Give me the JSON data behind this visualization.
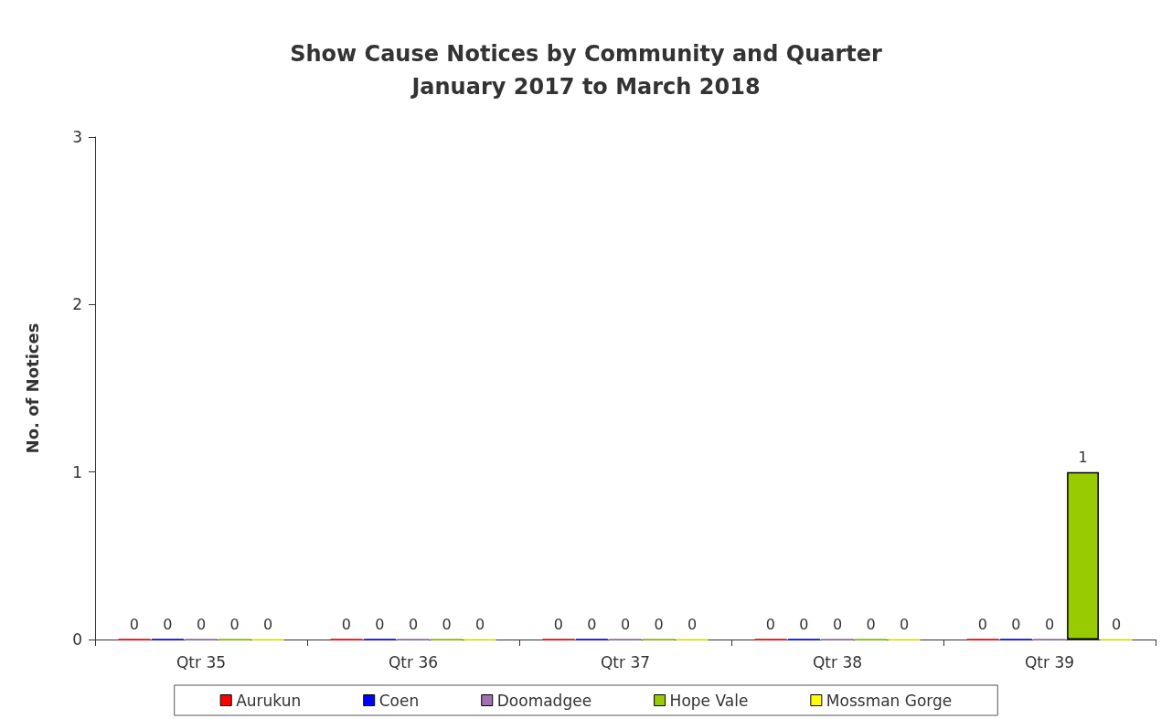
{
  "chart_data": {
    "type": "bar",
    "title": "Show Cause Notices by Community and Quarter\nJanuary 2017 to March 2018",
    "ylabel": "No. of Notices",
    "categories": [
      "Qtr 35",
      "Qtr 36",
      "Qtr 37",
      "Qtr 38",
      "Qtr 39"
    ],
    "series": [
      {
        "name": "Aurukun",
        "color": "#ff0000",
        "values": [
          0,
          0,
          0,
          0,
          0
        ]
      },
      {
        "name": "Coen",
        "color": "#0000ff",
        "values": [
          0,
          0,
          0,
          0,
          0
        ]
      },
      {
        "name": "Doomadgee",
        "color": "#a070b0",
        "values": [
          0,
          0,
          0,
          0,
          0
        ]
      },
      {
        "name": "Hope Vale",
        "color": "#99cc00",
        "values": [
          0,
          0,
          0,
          0,
          1
        ]
      },
      {
        "name": "Mossman Gorge",
        "color": "#ffff00",
        "values": [
          0,
          0,
          0,
          0,
          0
        ]
      }
    ],
    "ylim": [
      0,
      3
    ],
    "yticks": [
      0,
      1,
      2,
      3
    ],
    "grid": false,
    "legend": "bottom",
    "data_labels": true
  }
}
